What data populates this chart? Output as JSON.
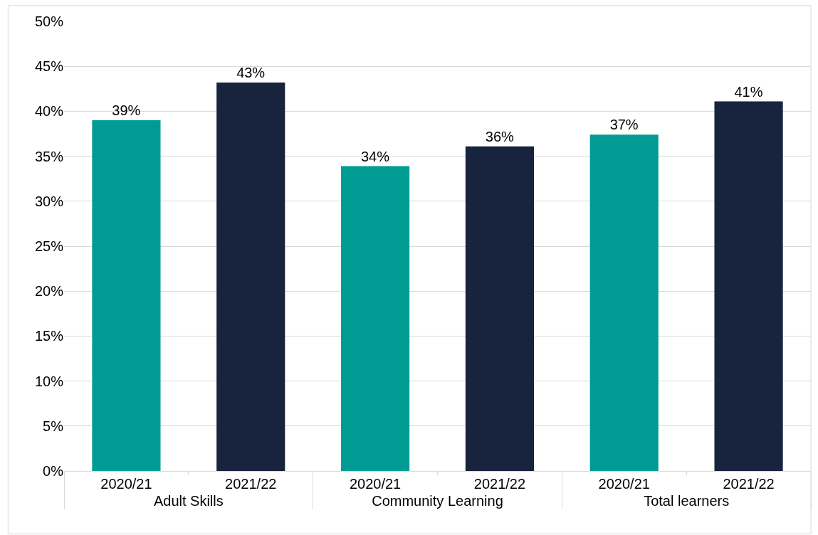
{
  "chart_data": {
    "type": "bar",
    "categories": [
      "Adult Skills",
      "Community Learning",
      "Total learners"
    ],
    "series": [
      {
        "name": "2020/21",
        "color": "#009c94",
        "values": [
          39.0,
          33.9,
          37.4
        ],
        "value_labels": [
          "39%",
          "34%",
          "37%"
        ]
      },
      {
        "name": "2021/22",
        "color": "#18233d",
        "values": [
          43.2,
          36.1,
          41.1
        ],
        "value_labels": [
          "43%",
          "36%",
          "41%"
        ]
      }
    ],
    "ylim": [
      0,
      50
    ],
    "yticks": [
      {
        "value": 0,
        "label": "0%"
      },
      {
        "value": 5,
        "label": "5%"
      },
      {
        "value": 10,
        "label": "10%"
      },
      {
        "value": 15,
        "label": "15%"
      },
      {
        "value": 20,
        "label": "20%"
      },
      {
        "value": 25,
        "label": "25%"
      },
      {
        "value": 30,
        "label": "30%"
      },
      {
        "value": 35,
        "label": "35%"
      },
      {
        "value": 40,
        "label": "40%"
      },
      {
        "value": 45,
        "label": "45%"
      },
      {
        "value": 50,
        "label": "50%"
      }
    ],
    "grid": "y",
    "legend": false
  }
}
